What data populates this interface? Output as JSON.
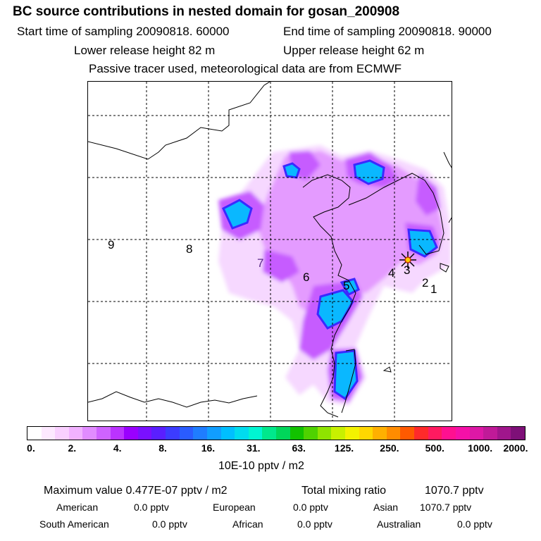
{
  "header": {
    "title": "BC  source contributions in nested domain for gosan_200908",
    "start_label": "Start time of sampling 20090818. 60000",
    "end_label": "End time of sampling 20090818. 90000",
    "lower_release": "Lower release height   82 m",
    "upper_release": "Upper release height   62 m",
    "tracer_note": "Passive tracer used, meteorological data are from ECMWF"
  },
  "map": {
    "regions": [
      {
        "label": "9",
        "color": "#000000"
      },
      {
        "label": "8",
        "color": "#000000"
      },
      {
        "label": "7",
        "color": "#5a2a8a"
      },
      {
        "label": "6",
        "color": "#000000"
      },
      {
        "label": "5",
        "color": "#000000"
      },
      {
        "label": "4",
        "color": "#000000"
      },
      {
        "label": "3",
        "color": "#000000"
      },
      {
        "label": "2",
        "color": "#000000"
      },
      {
        "label": "1",
        "color": "#000000"
      }
    ],
    "receptor_marker": "star-marker"
  },
  "colorbar": {
    "tick_labels": [
      "0.",
      "2.",
      "4.",
      "8.",
      "16.",
      "31.",
      "63.",
      "125.",
      "250.",
      "500.",
      "1000.",
      "2000."
    ],
    "swatches": [
      "#ffffff",
      "#fde9ff",
      "#f9d0ff",
      "#f1b2ff",
      "#e18cff",
      "#cf63ff",
      "#bb33ff",
      "#9a00ff",
      "#7a10ff",
      "#5a1fff",
      "#3c3cff",
      "#2a5cff",
      "#1f7dff",
      "#119eff",
      "#00bfff",
      "#00dcee",
      "#00f5d2",
      "#00e88c",
      "#00d65a",
      "#12c200",
      "#4fd200",
      "#8fe400",
      "#c8f000",
      "#f3f200",
      "#ffd700",
      "#ffb000",
      "#ff8c00",
      "#ff5a00",
      "#ff2a2a",
      "#ff1a60",
      "#ff1090",
      "#f510a8",
      "#dd18a6",
      "#c01a98",
      "#a0168c",
      "#7e1078"
    ],
    "units": "10E-10 pptv / m2"
  },
  "summary": {
    "max_label": "Maximum value  0.477E-07 pptv / m2",
    "total_label": "Total mixing ratio",
    "total_value": "1070.7 pptv",
    "rows": [
      [
        {
          "name": "American",
          "value": "0.0 pptv"
        },
        {
          "name": "European",
          "value": "0.0 pptv"
        },
        {
          "name": "Asian",
          "value": "1070.7 pptv"
        }
      ],
      [
        {
          "name": "South American",
          "value": "0.0 pptv"
        },
        {
          "name": "African",
          "value": "0.0 pptv"
        },
        {
          "name": "Australian",
          "value": "0.0 pptv"
        }
      ]
    ]
  }
}
